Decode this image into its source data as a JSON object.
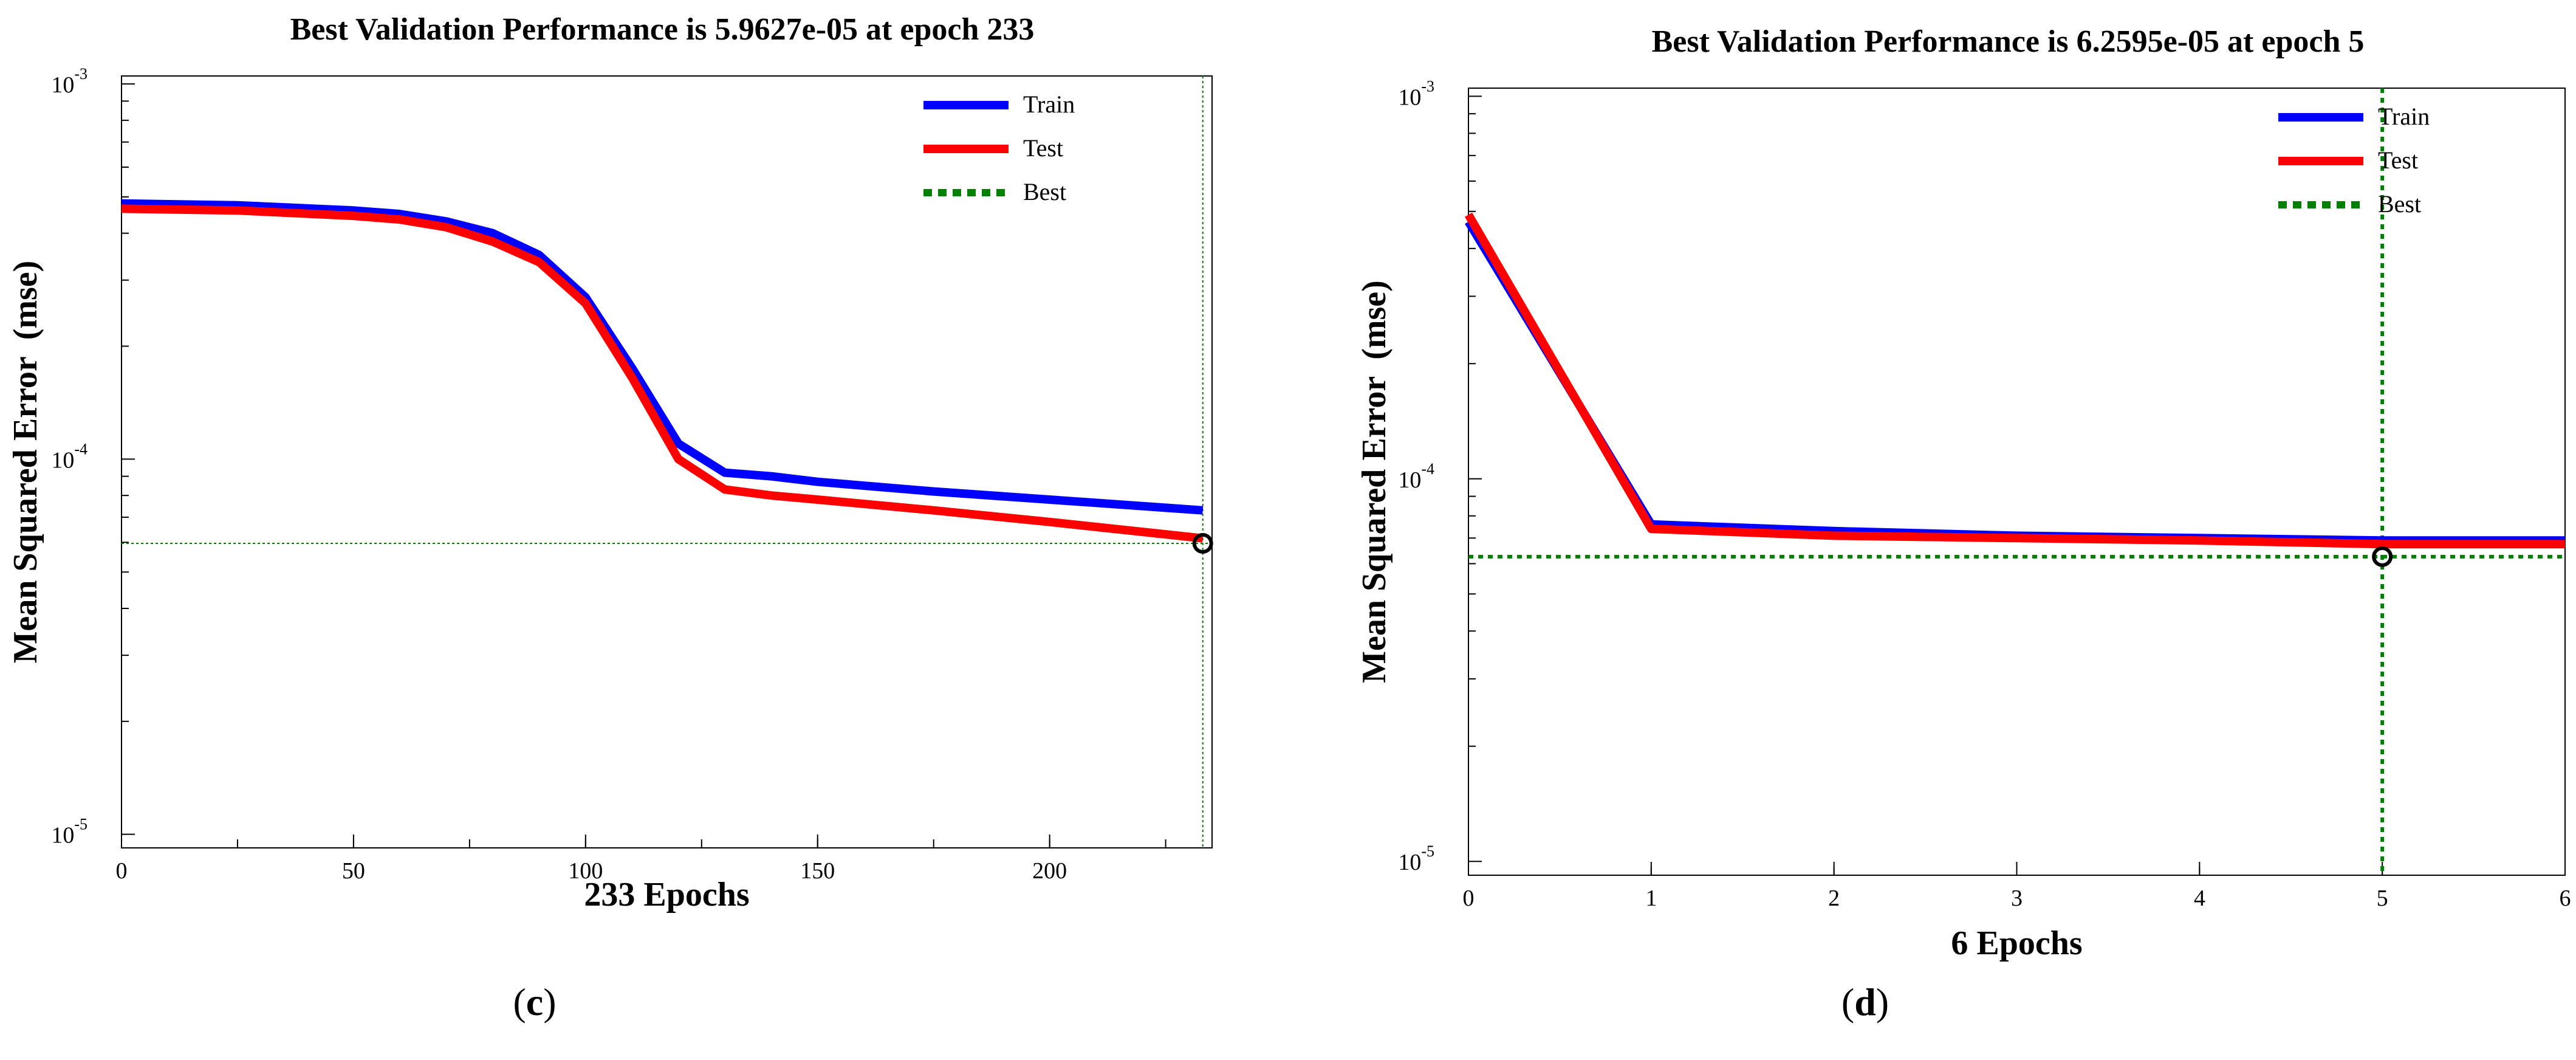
{
  "chart_data": [
    {
      "type": "line",
      "panel_label": "c",
      "title": "Best Validation Performance is 5.9627e-05 at epoch 233",
      "xlabel": "233 Epochs",
      "ylabel": "Mean Squared Error  (mse)",
      "yscale": "log",
      "xlim": [
        0,
        235
      ],
      "ylim": [
        9.2e-06,
        0.00105
      ],
      "xticks": [
        0,
        50,
        100,
        150,
        200
      ],
      "xtick_labels": [
        "0",
        "50",
        "100",
        "150",
        "200"
      ],
      "yticks": [
        1e-05,
        0.0001,
        0.001
      ],
      "ytick_bases": [
        "10",
        "10",
        "10"
      ],
      "ytick_exps": [
        "-5",
        "-4",
        "-3"
      ],
      "legend": {
        "position": "top-right",
        "entries": [
          "Train",
          "Test",
          "Best"
        ]
      },
      "series": [
        {
          "name": "Train",
          "color": "#0000ff",
          "x": [
            0,
            25,
            50,
            60,
            70,
            80,
            90,
            100,
            110,
            120,
            130,
            140,
            150,
            175,
            200,
            233
          ],
          "values": [
            0.00048,
            0.000475,
            0.00046,
            0.00045,
            0.00043,
            0.0004,
            0.00035,
            0.00027,
            0.000175,
            0.00011,
            9.2e-05,
            9e-05,
            8.7e-05,
            8.2e-05,
            7.8e-05,
            7.3e-05
          ]
        },
        {
          "name": "Test",
          "color": "#ff0000",
          "x": [
            0,
            25,
            50,
            60,
            70,
            80,
            90,
            100,
            110,
            120,
            130,
            140,
            150,
            175,
            200,
            233
          ],
          "values": [
            0.000465,
            0.00046,
            0.000445,
            0.000435,
            0.000415,
            0.00038,
            0.000335,
            0.00026,
            0.000165,
            0.0001,
            8.3e-05,
            8e-05,
            7.8e-05,
            7.3e-05,
            6.8e-05,
            6.15e-05
          ]
        }
      ],
      "best": {
        "epoch": 233,
        "value": 5.9627e-05,
        "color": "#008000"
      }
    },
    {
      "type": "line",
      "panel_label": "d",
      "title": "Best Validation Performance is 6.2595e-05 at epoch 5",
      "xlabel": "6 Epochs",
      "ylabel": "Mean Squared Error  (mse)",
      "yscale": "log",
      "xlim": [
        0,
        6
      ],
      "ylim": [
        9.2e-06,
        0.00105
      ],
      "xticks": [
        0,
        1,
        2,
        3,
        4,
        5,
        6
      ],
      "xtick_labels": [
        "0",
        "1",
        "2",
        "3",
        "4",
        "5",
        "6"
      ],
      "yticks": [
        1e-05,
        0.0001,
        0.001
      ],
      "ytick_bases": [
        "10",
        "10",
        "10"
      ],
      "ytick_exps": [
        "-5",
        "-4",
        "-3"
      ],
      "legend": {
        "position": "top-right",
        "entries": [
          "Train",
          "Test",
          "Best"
        ]
      },
      "series": [
        {
          "name": "Train",
          "color": "#0000ff",
          "x": [
            0,
            1,
            2,
            3,
            4,
            5,
            6
          ],
          "values": [
            0.00047,
            7.6e-05,
            7.3e-05,
            7.1e-05,
            7e-05,
            6.9e-05,
            6.9e-05
          ]
        },
        {
          "name": "Test",
          "color": "#ff0000",
          "x": [
            0,
            1,
            2,
            3,
            4,
            5,
            6
          ],
          "values": [
            0.00049,
            7.4e-05,
            7.1e-05,
            7e-05,
            6.9e-05,
            6.75e-05,
            6.75e-05
          ]
        }
      ],
      "best": {
        "epoch": 5,
        "value": 6.2595e-05,
        "color": "#008000"
      }
    }
  ]
}
